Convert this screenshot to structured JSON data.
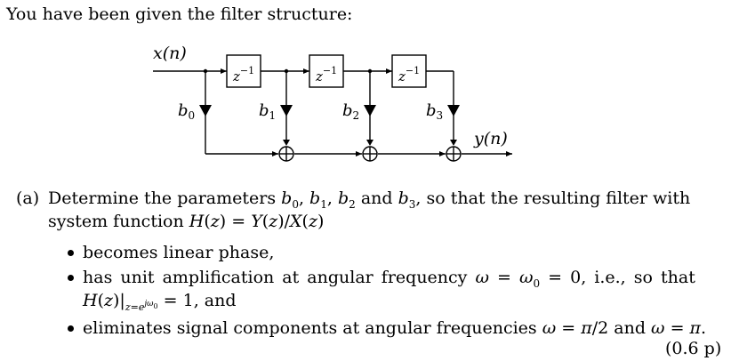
{
  "intro": "You have been given the filter structure:",
  "diagram": {
    "input_label": "x(n)",
    "output_label": "y(n)",
    "delay_label": "z",
    "delay_exponent": "−1",
    "coefficients": [
      {
        "sym": "b",
        "sub": "0"
      },
      {
        "sym": "b",
        "sub": "1"
      },
      {
        "sym": "b",
        "sub": "2"
      },
      {
        "sym": "b",
        "sub": "3"
      }
    ]
  },
  "question": {
    "label": "(a)",
    "line1_pre": "Determine the parameters",
    "line1_mid": "and",
    "line1_post": ", so that the resulting filter with",
    "line2_pre": "system function",
    "bullets": {
      "b1": "becomes linear phase,",
      "b2_pre": "has unit amplification at angular frequency",
      "b2_ie": ", i.e., so that",
      "b2_end": "= 1, and",
      "b3_pre": "eliminates signal components at angular frequencies",
      "b3_mid": "and"
    },
    "points": "(0.6 p)"
  }
}
